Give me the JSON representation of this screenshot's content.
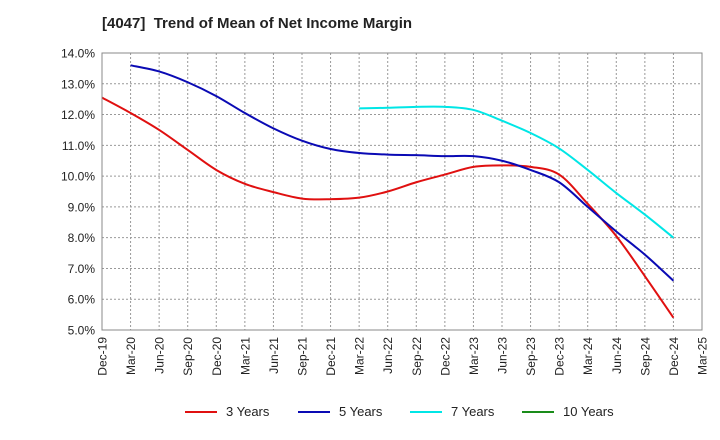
{
  "title": "[4047]  Trend of Mean of Net Income Margin",
  "chart_data": {
    "type": "line",
    "title": "[4047]  Trend of Mean of Net Income Margin",
    "xlabel": "",
    "ylabel": "",
    "x": [
      "Dec-19",
      "Mar-20",
      "Jun-20",
      "Sep-20",
      "Dec-20",
      "Mar-21",
      "Jun-21",
      "Sep-21",
      "Dec-21",
      "Mar-22",
      "Jun-22",
      "Sep-22",
      "Dec-22",
      "Mar-23",
      "Jun-23",
      "Sep-23",
      "Dec-23",
      "Mar-24",
      "Jun-24",
      "Sep-24",
      "Dec-24",
      "Mar-25"
    ],
    "y_ticks": [
      "5.0%",
      "6.0%",
      "7.0%",
      "8.0%",
      "9.0%",
      "10.0%",
      "11.0%",
      "12.0%",
      "13.0%",
      "14.0%"
    ],
    "ylim": [
      5.0,
      14.0
    ],
    "grid": true,
    "legend_position": "bottom",
    "series": [
      {
        "name": "3 Years",
        "color": "#e01010",
        "values": [
          12.55,
          12.05,
          11.5,
          10.85,
          10.2,
          9.75,
          9.48,
          9.27,
          9.25,
          9.3,
          9.5,
          9.8,
          10.05,
          10.3,
          10.35,
          10.3,
          10.05,
          9.1,
          8.05,
          6.75,
          5.4,
          null
        ]
      },
      {
        "name": "5 Years",
        "color": "#0a0ab4",
        "values": [
          null,
          13.6,
          13.4,
          13.05,
          12.6,
          12.05,
          11.55,
          11.15,
          10.88,
          10.75,
          10.7,
          10.68,
          10.65,
          10.65,
          10.5,
          10.2,
          9.8,
          9.0,
          8.2,
          7.45,
          6.6,
          null
        ]
      },
      {
        "name": "7 Years",
        "color": "#00e6e6",
        "values": [
          null,
          null,
          null,
          null,
          null,
          null,
          null,
          null,
          null,
          12.2,
          12.22,
          12.25,
          12.25,
          12.15,
          11.8,
          11.4,
          10.9,
          10.2,
          9.45,
          8.75,
          8.0,
          null
        ]
      },
      {
        "name": "10 Years",
        "color": "#1a8c1a",
        "values": [
          null,
          null,
          null,
          null,
          null,
          null,
          null,
          null,
          null,
          null,
          null,
          null,
          null,
          null,
          null,
          null,
          null,
          null,
          null,
          null,
          null,
          null
        ]
      }
    ]
  }
}
